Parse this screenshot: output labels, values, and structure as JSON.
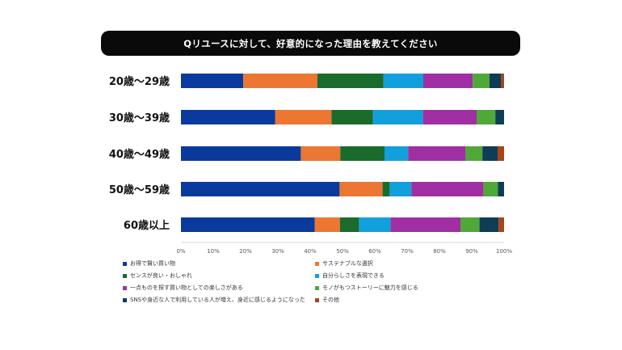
{
  "chart_data": {
    "type": "bar",
    "orientation": "horizontal",
    "stacked": true,
    "title": "Qリユースに対して、好意的になった理由を教えてください",
    "categories": [
      "20歳～29歳",
      "30歳～39歳",
      "40歳～49歳",
      "50歳～59歳",
      "60歳以上"
    ],
    "xlim": [
      0,
      100
    ],
    "x_ticks": [
      "0%",
      "10%",
      "20%",
      "30%",
      "40%",
      "50%",
      "60%",
      "70%",
      "80%",
      "90%",
      "100%"
    ],
    "grid": false,
    "legend_position": "bottom",
    "series": [
      {
        "name": "お得で賢い買い物",
        "color": "#0a3a9e",
        "values": [
          19.3,
          29.2,
          37.1,
          49.1,
          41.4
        ]
      },
      {
        "name": "サステナブルな選択",
        "color": "#ec7632",
        "values": [
          22.9,
          17.4,
          12.2,
          13.3,
          7.8
        ]
      },
      {
        "name": "センスが良い・おしゃれ",
        "color": "#1b6b2c",
        "values": [
          20.5,
          12.8,
          13.7,
          2.2,
          5.9
        ]
      },
      {
        "name": "自分らしさを表現できる",
        "color": "#11a0dc",
        "values": [
          12.3,
          15.5,
          7.3,
          6.7,
          9.8
        ]
      },
      {
        "name": "一点ものを探す買い物としての楽しさがある",
        "color": "#a02fa3",
        "values": [
          15.3,
          16.6,
          17.8,
          22.3,
          21.6
        ]
      },
      {
        "name": "モノがもつストーリーに魅力を感じる",
        "color": "#4fa838",
        "values": [
          5.2,
          5.8,
          5.2,
          4.5,
          5.9
        ]
      },
      {
        "name": "SNSや身近な人で利用している人が増え、身近に感じるようになった",
        "color": "#0e3d55",
        "values": [
          3.6,
          2.7,
          4.7,
          1.9,
          5.9
        ]
      },
      {
        "name": "その他",
        "color": "#a8431a",
        "values": [
          0.9,
          0.0,
          2.0,
          0.0,
          1.7
        ]
      }
    ]
  }
}
